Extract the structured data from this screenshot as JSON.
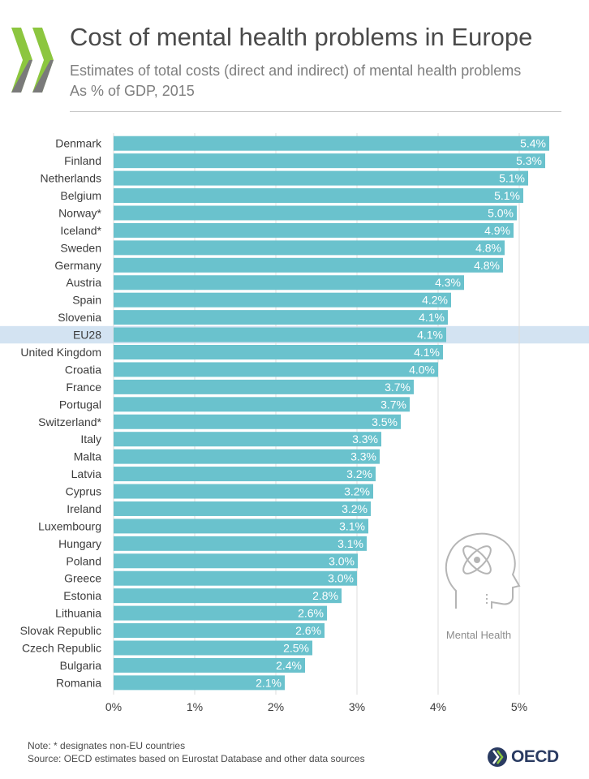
{
  "header": {
    "title": "Cost of mental health problems in Europe",
    "subtitle_line1": "Estimates of total costs (direct and indirect) of mental health problems",
    "subtitle_line2": "As % of GDP, 2015"
  },
  "colors": {
    "bar": "#6ac2cd",
    "highlight_band": "#d3e3f2",
    "logo_green": "#8cc63f",
    "logo_gray": "#7a7a7a",
    "label_text": "#ffffff",
    "icon_stroke": "#b5b5b5"
  },
  "chart_data": {
    "type": "bar",
    "orientation": "horizontal",
    "categories": [
      "Denmark",
      "Finland",
      "Netherlands",
      "Belgium",
      "Norway*",
      "Iceland*",
      "Sweden",
      "Germany",
      "Austria",
      "Spain",
      "Slovenia",
      "EU28",
      "United Kingdom",
      "Croatia",
      "France",
      "Portugal",
      "Switzerland*",
      "Italy",
      "Malta",
      "Latvia",
      "Cyprus",
      "Ireland",
      "Luxembourg",
      "Hungary",
      "Poland",
      "Greece",
      "Estonia",
      "Lithuania",
      "Slovak Republic",
      "Czech Republic",
      "Bulgaria",
      "Romania"
    ],
    "values": [
      5.37,
      5.32,
      5.11,
      5.05,
      4.97,
      4.93,
      4.82,
      4.8,
      4.32,
      4.16,
      4.12,
      4.1,
      4.06,
      4.0,
      3.7,
      3.65,
      3.54,
      3.3,
      3.28,
      3.23,
      3.2,
      3.17,
      3.14,
      3.12,
      3.01,
      3.0,
      2.81,
      2.63,
      2.6,
      2.45,
      2.36,
      2.11
    ],
    "value_labels": [
      "5.4%",
      "5.3%",
      "5.1%",
      "5.1%",
      "5.0%",
      "4.9%",
      "4.8%",
      "4.8%",
      "4.3%",
      "4.2%",
      "4.1%",
      "4.1%",
      "4.1%",
      "4.0%",
      "3.7%",
      "3.7%",
      "3.5%",
      "3.3%",
      "3.3%",
      "3.2%",
      "3.2%",
      "3.2%",
      "3.1%",
      "3.1%",
      "3.0%",
      "3.0%",
      "2.8%",
      "2.6%",
      "2.6%",
      "2.5%",
      "2.4%",
      "2.1%"
    ],
    "highlight": "EU28",
    "xlim": [
      0,
      5.5
    ],
    "xticks": [
      0,
      1,
      2,
      3,
      4,
      5
    ],
    "xtick_labels": [
      "0%",
      "1%",
      "2%",
      "3%",
      "4%",
      "5%"
    ],
    "grid": true,
    "title": "Cost of mental health problems in Europe",
    "xlabel": "",
    "ylabel": ""
  },
  "icon": {
    "name": "brain-atom-head-icon",
    "caption": "Mental Health"
  },
  "footer": {
    "note": "Note: * designates non-EU countries",
    "source": "Source: OECD estimates based on Eurostat Database and other data sources",
    "brand": "OECD"
  }
}
